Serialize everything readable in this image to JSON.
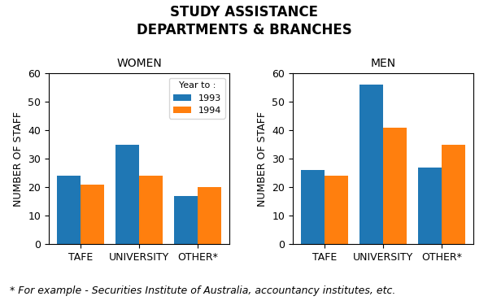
{
  "title": "STUDY ASSISTANCE",
  "subtitle": "DEPARTMENTS & BRANCHES",
  "annotations": [
    "* For example - Securities Institute of Australia, accountancy institutes, etc."
  ],
  "chart_data": [
    {
      "type": "bar",
      "title": "WOMEN",
      "categories": [
        "TAFE",
        "UNIVERSITY",
        "OTHER*"
      ],
      "series": [
        {
          "name": "1993",
          "values": [
            24,
            35,
            17
          ]
        },
        {
          "name": "1994",
          "values": [
            21,
            24,
            20
          ]
        }
      ],
      "ylabel": "NUMBER OF STAFF",
      "ylim": [
        0,
        60
      ],
      "yticks": [
        0,
        10,
        20,
        30,
        40,
        50,
        60
      ],
      "grid": false,
      "legend": "upper right",
      "legend_title": "Year to :"
    },
    {
      "type": "bar",
      "title": "MEN",
      "categories": [
        "TAFE",
        "UNIVERSITY",
        "OTHER*"
      ],
      "series": [
        {
          "name": "1993",
          "values": [
            26,
            56,
            27
          ]
        },
        {
          "name": "1994",
          "values": [
            24,
            41,
            35
          ]
        }
      ],
      "ylabel": "NUMBER OF STAFF",
      "ylim": [
        0,
        60
      ],
      "yticks": [
        0,
        10,
        20,
        30,
        40,
        50,
        60
      ],
      "grid": false
    }
  ]
}
